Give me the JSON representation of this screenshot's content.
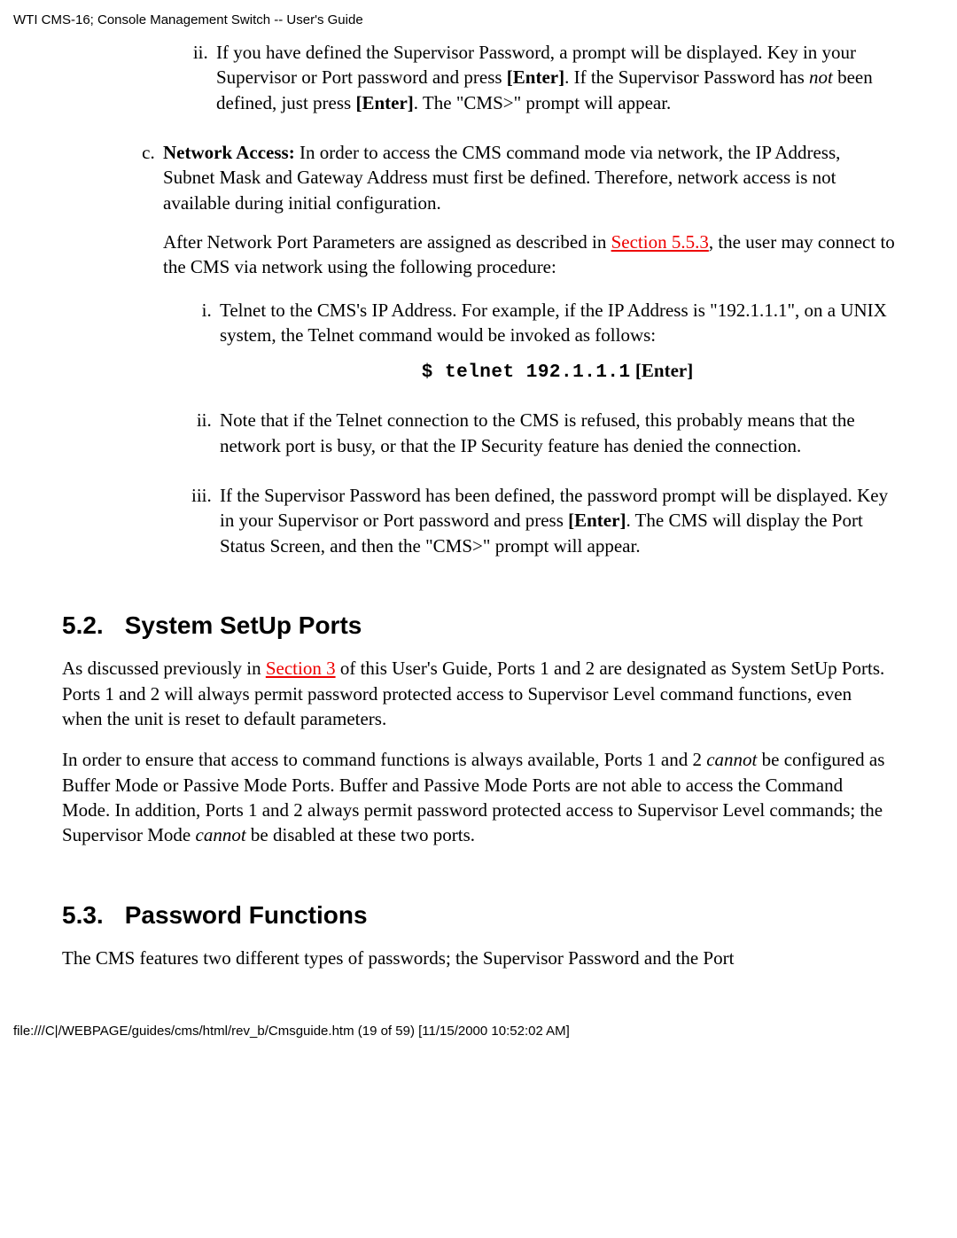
{
  "header": "WTI CMS-16; Console Management Switch -- User's Guide",
  "footer": "file:///C|/WEBPAGE/guides/cms/html/rev_b/Cmsguide.htm (19 of 59) [11/15/2000 10:52:02 AM]",
  "item_ii_top_pre": "If you have defined the Supervisor Password, a prompt will be displayed. Key in your Supervisor or Port password and press ",
  "item_ii_top_enter1": "[Enter]",
  "item_ii_top_mid1": ". If the Supervisor Password has ",
  "item_ii_top_not": "not",
  "item_ii_top_mid2": " been defined, just press ",
  "item_ii_top_enter2": "[Enter]",
  "item_ii_top_post": ". The \"CMS>\" prompt will appear.",
  "item_c_label": "Network Access:",
  "item_c_text": " In order to access the CMS command mode via network, the IP Address, Subnet Mask and Gateway Address must first be defined. Therefore, network access is not available during initial configuration.",
  "item_c_para2_pre": "After Network Port Parameters are assigned as described in ",
  "item_c_link": "Section 5.5.3",
  "item_c_para2_post": ", the user may connect to the CMS via network using the following procedure:",
  "net_i": "Telnet to the CMS's IP Address. For example, if the IP Address is \"192.1.1.1\", on a UNIX system, the Telnet command would be invoked as follows:",
  "code_tt": "$ telnet 192.1.1.1",
  "code_enter": " [Enter]",
  "net_ii": "Note that if the Telnet connection to the CMS is refused, this probably means that the network port is busy, or that the IP Security feature has denied the connection.",
  "net_iii_pre": "If the Supervisor Password has been defined, the password prompt will be displayed. Key in your Supervisor or Port password and press ",
  "net_iii_enter": "[Enter]",
  "net_iii_post": ". The CMS will display the Port Status Screen, and then the \"CMS>\" prompt will appear.",
  "h52_num": "5.2.",
  "h52_title": "System SetUp Ports",
  "p52a_pre": "As discussed previously in ",
  "p52a_link": "Section 3",
  "p52a_post": " of this User's Guide, Ports 1 and 2 are designated as System SetUp Ports. Ports 1 and 2 will always permit password protected access to Supervisor Level command functions, even when the unit is reset to default parameters.",
  "p52b_pre": "In order to ensure that access to command functions is always available, Ports 1 and 2 ",
  "p52b_cannot1": "cannot",
  "p52b_mid": " be configured as Buffer Mode or Passive Mode Ports. Buffer and Passive Mode Ports are not able to access the Command Mode. In addition, Ports 1 and 2 always permit password protected access to Supervisor Level commands; the Supervisor Mode ",
  "p52b_cannot2": "cannot",
  "p52b_post": " be disabled at these two ports.",
  "h53_num": "5.3.",
  "h53_title": "Password Functions",
  "p53": "The CMS features two different types of passwords; the Supervisor Password and the Port"
}
